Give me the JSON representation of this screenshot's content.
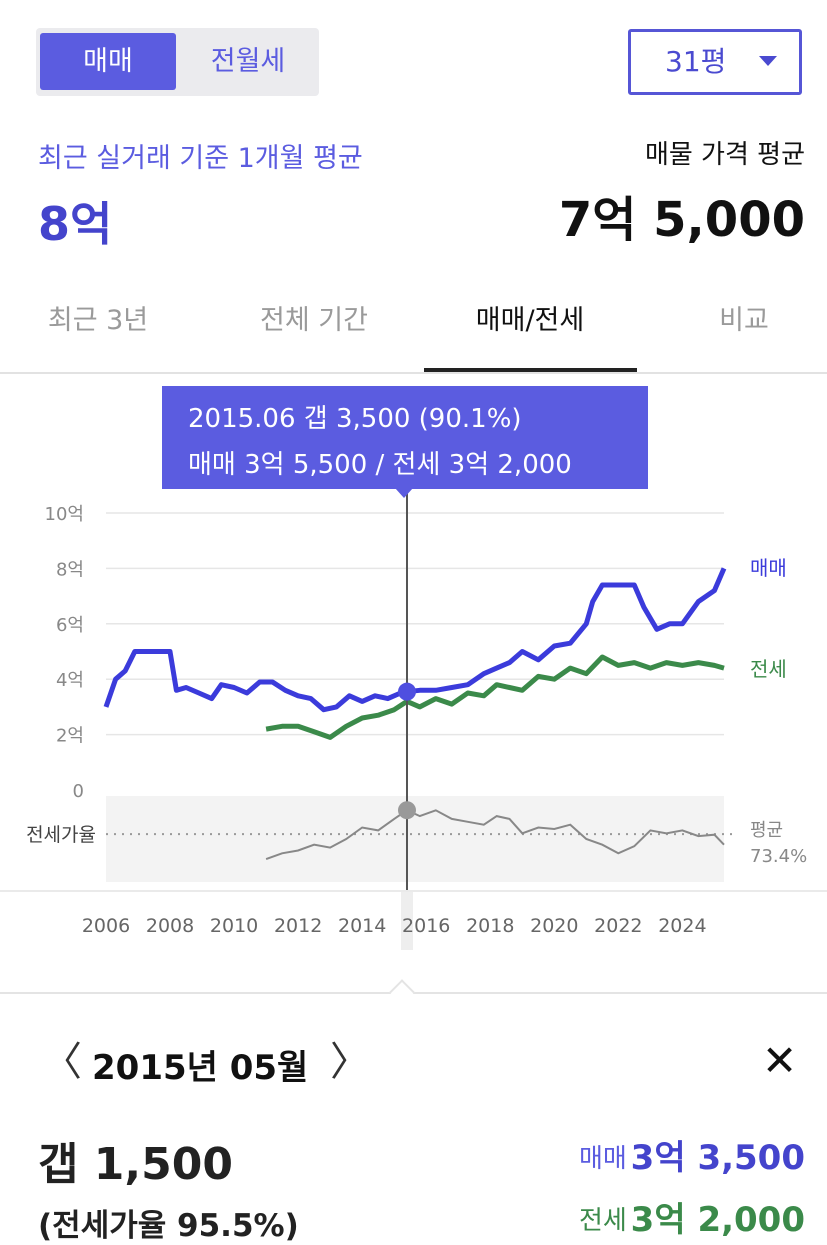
{
  "header": {
    "trade_tabs": [
      "매매",
      "전월세"
    ],
    "size_select": "31평",
    "recent_label": "최근 실거래 기준 1개월 평균",
    "recent_value": "8억",
    "listing_label": "매물 가격 평균",
    "listing_value": "7억 5,000"
  },
  "period_tabs": [
    "최근 3년",
    "전체 기간",
    "매매/전세",
    "비교"
  ],
  "tooltip": {
    "line1": "2015.06  갭 3,500 (90.1%)",
    "line2": "매매 3억 5,500 / 전세 3억 2,000"
  },
  "chart_data": {
    "type": "line",
    "ylim": [
      0,
      10
    ],
    "y_ticks": [
      "10억",
      "8억",
      "6억",
      "4억",
      "2억",
      "0"
    ],
    "x_ticks": [
      "2006",
      "2008",
      "2010",
      "2012",
      "2014",
      "2016",
      "2018",
      "2020",
      "2022",
      "2024"
    ],
    "series": [
      {
        "name": "매매",
        "color": "#3b3bdb",
        "x": [
          2006.0,
          2006.3,
          2006.6,
          2006.9,
          2007.2,
          2007.6,
          2008.0,
          2008.2,
          2008.5,
          2008.9,
          2009.3,
          2009.6,
          2010.0,
          2010.4,
          2010.8,
          2011.2,
          2011.6,
          2012.0,
          2012.4,
          2012.8,
          2013.2,
          2013.6,
          2014.0,
          2014.4,
          2014.8,
          2015.2,
          2015.4,
          2015.8,
          2016.3,
          2016.8,
          2017.3,
          2017.8,
          2018.2,
          2018.6,
          2019.0,
          2019.5,
          2020.0,
          2020.5,
          2021.0,
          2021.2,
          2021.5,
          2022.0,
          2022.5,
          2022.8,
          2023.2,
          2023.6,
          2024.0,
          2024.5,
          2025.0,
          2025.3
        ],
        "values": [
          3.0,
          4.0,
          4.3,
          5.0,
          5.0,
          5.0,
          5.0,
          3.6,
          3.7,
          3.5,
          3.3,
          3.8,
          3.7,
          3.5,
          3.9,
          3.9,
          3.6,
          3.4,
          3.3,
          2.9,
          3.0,
          3.4,
          3.2,
          3.4,
          3.3,
          3.5,
          3.55,
          3.6,
          3.6,
          3.7,
          3.8,
          4.2,
          4.4,
          4.6,
          5.0,
          4.7,
          5.2,
          5.3,
          6.0,
          6.8,
          7.4,
          7.4,
          7.4,
          6.6,
          5.8,
          6.0,
          6.0,
          6.8,
          7.2,
          8.0
        ]
      },
      {
        "name": "전세",
        "color": "#3b8a4a",
        "x": [
          2011.0,
          2011.5,
          2012.0,
          2012.5,
          2013.0,
          2013.5,
          2014.0,
          2014.5,
          2015.0,
          2015.4,
          2015.8,
          2016.3,
          2016.8,
          2017.3,
          2017.8,
          2018.2,
          2018.6,
          2019.0,
          2019.5,
          2020.0,
          2020.5,
          2021.0,
          2021.5,
          2022.0,
          2022.5,
          2023.0,
          2023.5,
          2024.0,
          2024.5,
          2025.0,
          2025.3
        ],
        "values": [
          2.2,
          2.3,
          2.3,
          2.1,
          1.9,
          2.3,
          2.6,
          2.7,
          2.9,
          3.2,
          3.0,
          3.3,
          3.1,
          3.5,
          3.4,
          3.8,
          3.7,
          3.6,
          4.1,
          4.0,
          4.4,
          4.2,
          4.8,
          4.5,
          4.6,
          4.4,
          4.6,
          4.5,
          4.6,
          4.5,
          4.4
        ]
      },
      {
        "name": "전세가율",
        "color": "#888888",
        "x": [
          2011.0,
          2011.5,
          2012.0,
          2012.5,
          2013.0,
          2013.5,
          2014.0,
          2014.5,
          2015.0,
          2015.4,
          2015.8,
          2016.3,
          2016.8,
          2017.3,
          2017.8,
          2018.2,
          2018.6,
          2019.0,
          2019.5,
          2020.0,
          2020.5,
          2021.0,
          2021.5,
          2022.0,
          2022.5,
          2023.0,
          2023.5,
          2024.0,
          2024.5,
          2025.0,
          2025.3
        ],
        "values": [
          56,
          60,
          62,
          66,
          64,
          70,
          78,
          76,
          84,
          90.1,
          86,
          90,
          84,
          82,
          80,
          86,
          84,
          74,
          78,
          77,
          80,
          70,
          66,
          60,
          65,
          76,
          74,
          76,
          72,
          73,
          66
        ]
      }
    ],
    "series_labels": {
      "sale": "매매",
      "jeonse": "전세"
    },
    "ratio_label": "전세가율",
    "average_label": "평균",
    "average_value": "73.4%",
    "average": 73.4,
    "cursor_year": 2015.4
  },
  "detail": {
    "month": "2015년 05월",
    "gap": "갭 1,500",
    "ratio": "(전세가율 95.5%)",
    "sale_label": "매매",
    "sale_value": "3억 3,500",
    "jeonse_label": "전세",
    "jeonse_value": "3억 2,000"
  },
  "colors": {
    "accent": "#5b5ce0",
    "sale": "#3b3bdb",
    "jeonse": "#3b8a4a"
  }
}
